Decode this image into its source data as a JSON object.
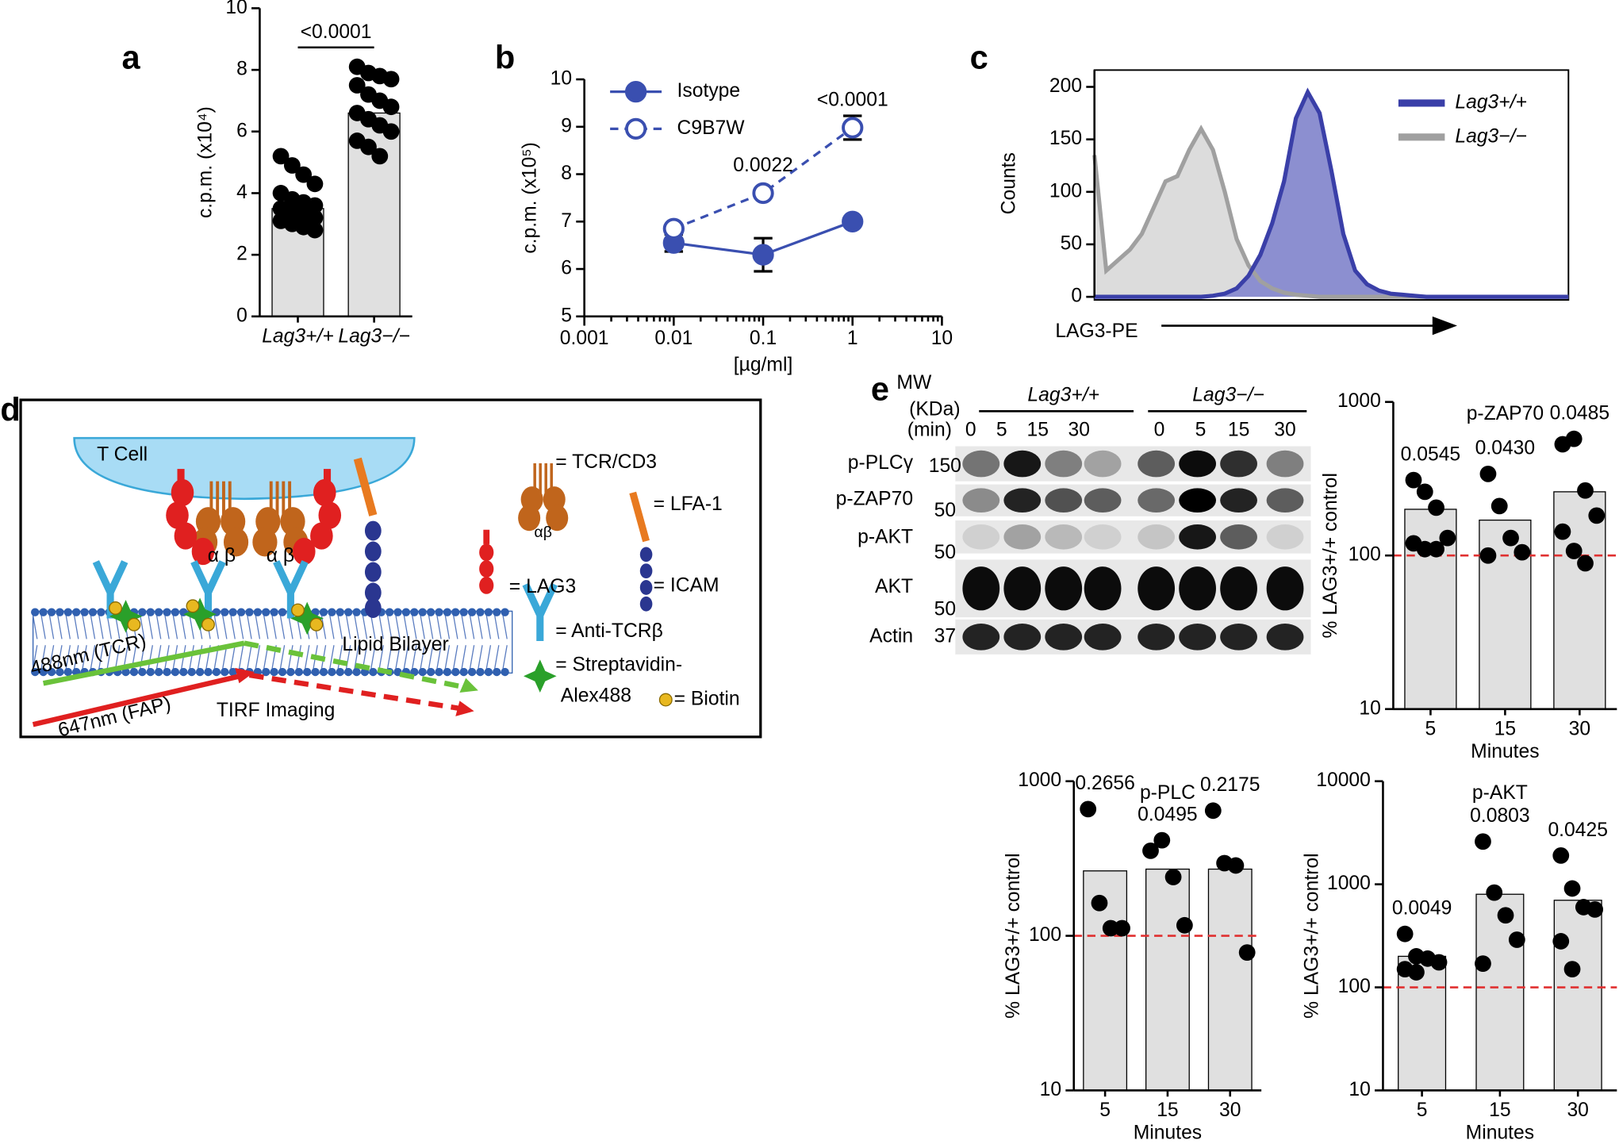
{
  "panel_labels": [
    "a",
    "b",
    "c",
    "d",
    "e"
  ],
  "chart_data": [
    {
      "type": "bar",
      "categories": [
        "Lag3+/+",
        "Lag3−/−"
      ],
      "values": [
        3.5,
        6.6
      ],
      "color": "#e0e0e0",
      "point_color": "#000000",
      "points": [
        [
          5.2,
          4.9,
          4.6,
          4.3,
          4.0,
          3.8,
          3.7,
          3.6,
          3.5,
          3.4,
          3.3,
          3.2,
          3.1,
          3.0,
          2.9,
          2.8
        ],
        [
          8.1,
          7.9,
          7.8,
          7.7,
          7.5,
          7.2,
          7.0,
          6.8,
          6.6,
          6.4,
          6.2,
          6.0,
          5.7,
          5.5,
          5.2
        ]
      ],
      "annotation": "<0.0001",
      "y_label": "c.p.m. (x10⁴)",
      "ylim": [
        0,
        10
      ],
      "yticks": [
        0,
        2,
        4,
        6,
        8,
        10
      ]
    },
    {
      "type": "line",
      "x": [
        0.01,
        0.1,
        1
      ],
      "xlog": true,
      "xlim": [
        0.001,
        10
      ],
      "xticks": [
        0.001,
        0.01,
        0.1,
        1,
        10
      ],
      "ylim": [
        5,
        10
      ],
      "yticks": [
        5,
        6,
        7,
        8,
        9,
        10
      ],
      "x_label": "[µg/ml]",
      "y_label": "c.p.m. (x10⁵)",
      "legend": "upper left",
      "series": [
        {
          "name": "Isotype",
          "color": "#3a4fb0",
          "marker": "filled",
          "dashed": false,
          "values": [
            6.55,
            6.3,
            7.0
          ],
          "errors": [
            0.18,
            0.35,
            0.04
          ]
        },
        {
          "name": "C9B7W",
          "color": "#3a4fb0",
          "marker": "open",
          "dashed": true,
          "values": [
            6.85,
            7.6,
            8.98
          ],
          "errors": [
            0.05,
            0.05,
            0.25
          ]
        }
      ],
      "annotations": [
        null,
        "0.0022",
        "<0.0001"
      ]
    },
    {
      "type": "area",
      "x": [
        0,
        25,
        50,
        75,
        100,
        125,
        150,
        175,
        200,
        225,
        250,
        275,
        300,
        325,
        350,
        375,
        400,
        425,
        450,
        475,
        500,
        525,
        550,
        575,
        600,
        625,
        650,
        675,
        700,
        725,
        750,
        775,
        800,
        825,
        850,
        875,
        900,
        925,
        950,
        975,
        1000
      ],
      "xlim": [
        0,
        1000
      ],
      "ylim": [
        0,
        216
      ],
      "yticks": [
        0,
        50,
        100,
        150,
        200
      ],
      "x_label": "LAG3-PE",
      "y_label": "Counts",
      "legend": "upper right",
      "series": [
        {
          "name": "Lag3+/+",
          "color": "#3a3fa8",
          "fill": "#8c8fd0",
          "values": [
            0,
            0,
            0,
            0,
            0,
            0,
            0,
            0,
            0,
            0,
            1,
            3,
            8,
            20,
            40,
            70,
            110,
            170,
            195,
            175,
            120,
            60,
            25,
            12,
            6,
            3,
            2,
            1,
            0,
            0,
            0,
            0,
            0,
            0,
            0,
            0,
            0,
            0,
            0,
            0,
            0
          ]
        },
        {
          "name": "Lag3−/−",
          "color": "#a0a0a0",
          "fill": "#dcdcdc",
          "values": [
            135,
            25,
            35,
            45,
            60,
            85,
            110,
            115,
            140,
            160,
            140,
            100,
            55,
            30,
            15,
            8,
            4,
            2,
            1,
            0,
            0,
            0,
            0,
            0,
            0,
            0,
            0,
            0,
            0,
            0,
            0,
            0,
            0,
            0,
            0,
            0,
            0,
            0,
            0,
            0,
            0
          ]
        }
      ]
    },
    {
      "type": "bar",
      "title": "p-ZAP70",
      "categories": [
        "5",
        "15",
        "30"
      ],
      "values": [
        200,
        170,
        260
      ],
      "color": "#e0e0e0",
      "point_color": "#000000",
      "points": [
        [
          310,
          260,
          205,
          130,
          120,
          110,
          110
        ],
        [
          340,
          210,
          130,
          105,
          100
        ],
        [
          530,
          575,
          265,
          182,
          143,
          107,
          89
        ]
      ],
      "annotations": [
        "0.0545",
        "0.0430",
        "0.0485"
      ],
      "ylog": true,
      "ylim": [
        10,
        1000
      ],
      "yticks": [
        10,
        100,
        1000
      ],
      "reference_line": 100,
      "reference_color": "#e03030",
      "x_label": "Minutes",
      "y_label": "% LAG3+/+ control"
    },
    {
      "type": "bar",
      "title": "p-PLC",
      "categories": [
        "5",
        "15",
        "30"
      ],
      "values": [
        263,
        270,
        270
      ],
      "color": "#e0e0e0",
      "point_color": "#000000",
      "points": [
        [
          660,
          163,
          112,
          112
        ],
        [
          355,
          415,
          240,
          117
        ],
        [
          645,
          295,
          285,
          78
        ]
      ],
      "annotations": [
        "0.2656",
        "0.0495",
        "0.2175"
      ],
      "ylog": true,
      "ylim": [
        10,
        1000
      ],
      "yticks": [
        10,
        100,
        1000
      ],
      "reference_line": 100,
      "reference_color": "#e03030",
      "x_label": "Minutes",
      "y_label": "% LAG3+/+ control"
    },
    {
      "type": "bar",
      "title": "p-AKT",
      "categories": [
        "5",
        "15",
        "30"
      ],
      "values": [
        200,
        800,
        700
      ],
      "color": "#e0e0e0",
      "point_color": "#000000",
      "points": [
        [
          330,
          200,
          190,
          175,
          150,
          140
        ],
        [
          2600,
          830,
          500,
          290,
          170
        ],
        [
          1900,
          910,
          600,
          570,
          280,
          150
        ]
      ],
      "annotations": [
        "0.0049",
        "0.0803",
        "0.0425"
      ],
      "ylog": true,
      "ylim": [
        10,
        10000
      ],
      "yticks": [
        10,
        100,
        1000,
        10000
      ],
      "reference_line": 100,
      "reference_color": "#e03030",
      "x_label": "Minutes",
      "y_label": "% LAG3+/+ control"
    }
  ],
  "diagram": {
    "cell_label": "T Cell",
    "bilayer_label": "Lipid Bilayer",
    "beams": [
      "488nm (TCR)",
      "647nm (FAP)"
    ],
    "imaging_label": "TIRF Imaging",
    "chain_labels": [
      "α β",
      "α β",
      "αβ"
    ],
    "legend": [
      "= TCR/CD3",
      "= LFA-1",
      "= LAG3",
      "= ICAM",
      "= Anti-TCRβ",
      "= Streptavidin-",
      "Alex488",
      "= Biotin"
    ]
  },
  "blot": {
    "mw_header": [
      "MW",
      "(KDa)"
    ],
    "groups": [
      "Lag3+/+",
      "Lag3−/−"
    ],
    "time_header": "(min)",
    "times": [
      [
        "0",
        "5",
        "15",
        "30"
      ],
      [
        "0",
        "5",
        "15",
        "30"
      ]
    ],
    "rows": [
      {
        "label": "p-PLCγ",
        "mw": "150"
      },
      {
        "label": "p-ZAP70",
        "mw": "50"
      },
      {
        "label": "p-AKT",
        "mw": "50"
      },
      {
        "label": "AKT",
        "mw": "50"
      },
      {
        "label": "Actin",
        "mw": "37"
      }
    ]
  }
}
